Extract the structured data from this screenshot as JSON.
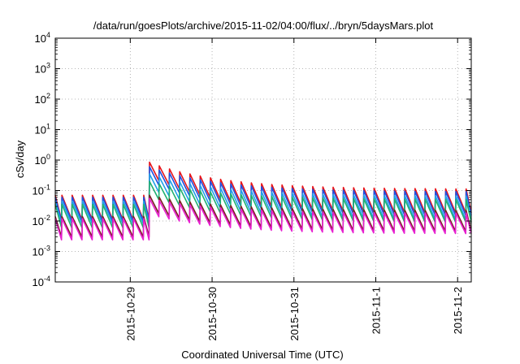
{
  "chart_data": {
    "type": "line",
    "title": "/data/run/goesPlots/archive/2015-11-02/04:00/flux/../bryn/5daysMars.plot",
    "xlabel": "Coordinated Universal Time (UTC)",
    "ylabel": "cSv/day",
    "y_scale": "log",
    "ylim": [
      0.0001,
      10000
    ],
    "xlim": [
      "2015-10-28 02:00",
      "2015-11-02 04:00"
    ],
    "grid": true,
    "legend": "none",
    "y_ticks": [
      {
        "base": "10",
        "exp": "-4"
      },
      {
        "base": "10",
        "exp": "-3"
      },
      {
        "base": "10",
        "exp": "-2"
      },
      {
        "base": "10",
        "exp": "-1"
      },
      {
        "base": "10",
        "exp": "0"
      },
      {
        "base": "10",
        "exp": "1"
      },
      {
        "base": "10",
        "exp": "2"
      },
      {
        "base": "10",
        "exp": "3"
      },
      {
        "base": "10",
        "exp": "4"
      }
    ],
    "x_ticks": [
      "2015-10-29",
      "2015-10-30",
      "2015-10-31",
      "2015-11-1",
      "2015-11-2"
    ],
    "sawtooth_period_hours": 3,
    "event_onset": "2015-10-29 05:30",
    "series": [
      {
        "color": "#e8141a",
        "before_event": {
          "peak": 0.07,
          "trough": 0.011
        },
        "event_peak": 0.85,
        "after_event": {
          "peak": 0.11,
          "trough": 0.018
        }
      },
      {
        "color": "#2050e0",
        "before_event": {
          "peak": 0.06,
          "trough": 0.01
        },
        "event_peak": 0.6,
        "after_event": {
          "peak": 0.09,
          "trough": 0.015
        }
      },
      {
        "color": "#20a0e8",
        "before_event": {
          "peak": 0.045,
          "trough": 0.008
        },
        "event_peak": 0.35,
        "after_event": {
          "peak": 0.065,
          "trough": 0.011
        }
      },
      {
        "color": "#20b070",
        "before_event": {
          "peak": 0.035,
          "trough": 0.006
        },
        "event_peak": 0.2,
        "after_event": {
          "peak": 0.05,
          "trough": 0.009
        }
      },
      {
        "color": "#7a2020",
        "before_event": {
          "peak": 0.014,
          "trough": 0.003
        },
        "event_peak": 0.07,
        "after_event": {
          "peak": 0.022,
          "trough": 0.0045
        }
      },
      {
        "color": "#e820d0",
        "before_event": {
          "peak": 0.012,
          "trough": 0.0024
        },
        "event_peak": 0.055,
        "after_event": {
          "peak": 0.018,
          "trough": 0.0038
        }
      }
    ]
  }
}
